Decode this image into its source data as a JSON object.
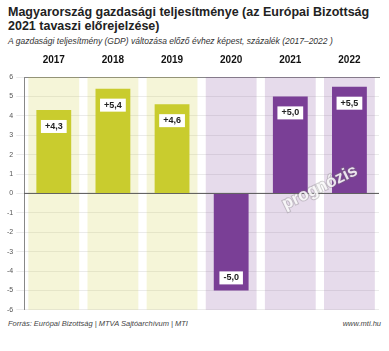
{
  "chart_data": {
    "type": "bar",
    "title": "Magyarország gazdasági teljesítménye (az Európai Bizottság 2021 tavaszi előrejelzése)",
    "subtitle": "A gazdasági teljesítmény (GDP) változása előző évhez képest, százalék (2017–2022 )",
    "categories": [
      "2017",
      "2018",
      "2019",
      "2020",
      "2021",
      "2022"
    ],
    "values": [
      4.3,
      5.4,
      4.6,
      -5.0,
      5.0,
      5.5
    ],
    "value_labels": [
      "+4,3",
      "+5,4",
      "+4,6",
      "-5,0",
      "+5,0",
      "+5,5"
    ],
    "colors": [
      "#c9cc2e",
      "#c9cc2e",
      "#c9cc2e",
      "#7a3f96",
      "#7a3f96",
      "#7a3f96"
    ],
    "ylim": [
      -6,
      6
    ],
    "yticks": [
      -6,
      -5,
      -4,
      -3,
      -2,
      -1,
      0,
      1,
      2,
      3,
      4,
      5,
      6
    ],
    "grid": true,
    "data_labels": true,
    "annotation": "prognózis",
    "source": "Forrás: Európai Bizottság | MTVA Sajtóarchívum | MTI",
    "website": "www.mti.hu"
  }
}
